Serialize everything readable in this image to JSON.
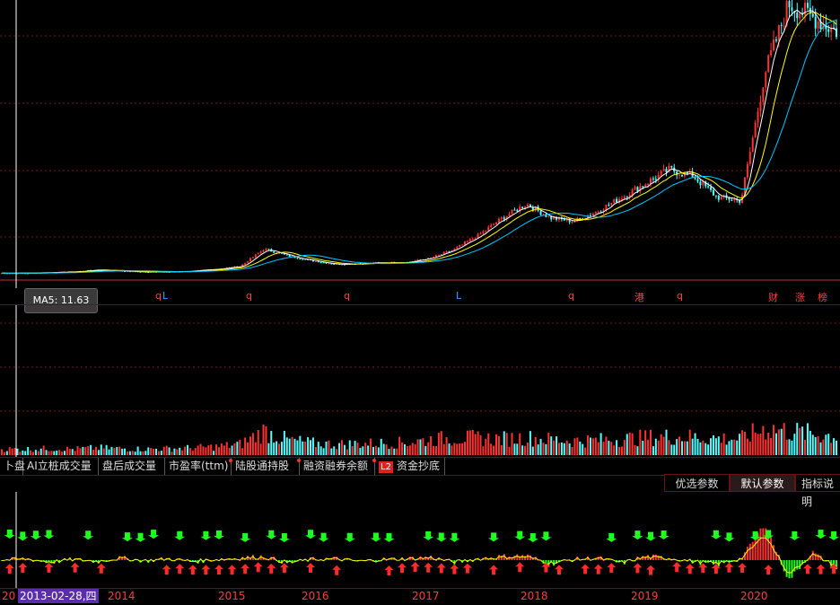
{
  "tooltip": {
    "ma5": "MA5: 11.63"
  },
  "markers": [
    {
      "text": "q",
      "color": "#ff4040"
    },
    {
      "text": "L",
      "color": "#3aa0ff"
    },
    {
      "text": "q",
      "color": "#ff4040"
    },
    {
      "text": "q",
      "color": "#ff4040"
    },
    {
      "text": "L",
      "color": "#3aa0ff"
    },
    {
      "text": "q",
      "color": "#ff4040"
    },
    {
      "text": "港",
      "color": "#ff4040"
    },
    {
      "text": "q",
      "color": "#ff4040"
    },
    {
      "text": "财",
      "color": "#ff4040"
    },
    {
      "text": "涨",
      "color": "#ff4040"
    },
    {
      "text": "榜",
      "color": "#ff4040"
    }
  ],
  "tabs": [
    {
      "label": "卜盘"
    },
    {
      "label": "AI立桩成交量"
    },
    {
      "label": "盘后成交量"
    },
    {
      "label": "市盈率(ttm)"
    },
    {
      "label": "陆股通持股"
    },
    {
      "label": "融资融券余额"
    },
    {
      "label": "资金抄底",
      "badge": "L2"
    }
  ],
  "params": {
    "optimized": "优选参数",
    "default": "默认参数",
    "help": "指标说明"
  },
  "xaxis": {
    "cursor_date": "2013-02-28,四",
    "left_cut": "20",
    "years": [
      "2014",
      "2015",
      "2016",
      "2017",
      "2018",
      "2019",
      "2020"
    ]
  },
  "colors": {
    "up": "#ff3232",
    "down": "#54ffff",
    "ma_white": "#ffffff",
    "ma_yellow": "#ffff00",
    "ma_cyan": "#00c8ff",
    "arrow_up": "#ff2a2a",
    "arrow_down": "#1fff1f",
    "grid": "#7a1a1a"
  },
  "chart_data": {
    "type": "line",
    "series": [
      {
        "values": [
          1.0,
          1.0,
          1.1,
          1.2,
          1.5,
          1.3,
          1.2,
          1.2,
          1.3,
          1.6,
          2.0,
          4.5,
          3.5,
          2.8,
          2.3,
          2.4,
          2.5,
          2.6,
          3.2,
          4.5,
          6.5,
          9.0,
          11.0,
          9.0,
          8.5,
          10.0,
          12.0,
          14.0,
          16.0,
          15.0,
          12.0,
          11.5,
          30.0,
          40.0,
          38.0,
          36.0
        ]
      }
    ],
    "volume": [
      1.0,
      1.0,
      1.1,
      1.0,
      1.2,
      1.1,
      1.0,
      1.1,
      1.2,
      1.4,
      1.8,
      4.0,
      2.5,
      2.0,
      1.8,
      1.9,
      2.0,
      2.1,
      2.6,
      2.9,
      2.8,
      2.7,
      2.9,
      2.6,
      2.4,
      2.5,
      2.7,
      2.9,
      3.1,
      3.0,
      2.8,
      2.7,
      4.5,
      4.0,
      3.5,
      3.2
    ],
    "indicator": [
      0,
      0.2,
      -0.3,
      0.1,
      -0.2,
      0.3,
      -0.1,
      0.2,
      -0.2,
      0.1,
      0.3,
      0.5,
      -0.4,
      0.1,
      0.2,
      -0.2,
      0.1,
      0.2,
      0.4,
      -0.3,
      0.2,
      0.5,
      0.6,
      -0.5,
      0.1,
      0.3,
      -0.4,
      0.5,
      0.3,
      -0.2,
      -0.6,
      0.2,
      4.5,
      -2.5,
      1.0,
      -1.0
    ]
  }
}
